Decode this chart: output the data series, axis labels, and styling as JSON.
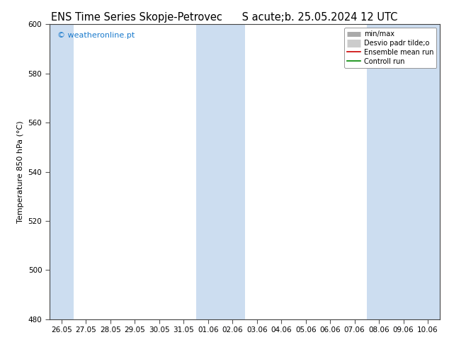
{
  "title1": "ENS Time Series Skopje-Petrovec",
  "title2": "S acute;b. 25.05.2024 12 UTC",
  "ylabel": "Temperature 850 hPa (°C)",
  "ylim": [
    480,
    600
  ],
  "yticks": [
    480,
    500,
    520,
    540,
    560,
    580,
    600
  ],
  "xlabels": [
    "26.05",
    "27.05",
    "28.05",
    "29.05",
    "30.05",
    "31.05",
    "01.06",
    "02.06",
    "03.06",
    "04.06",
    "05.06",
    "06.06",
    "07.06",
    "08.06",
    "09.06",
    "10.06"
  ],
  "n_ticks": 16,
  "band_color": "#ccddf0",
  "shaded_indices": [
    0,
    6,
    7,
    13,
    14,
    15
  ],
  "watermark": "© weatheronline.pt",
  "watermark_color": "#1a7acc",
  "legend_labels": [
    "min/max",
    "Desvio padr tilde;o",
    "Ensemble mean run",
    "Controll run"
  ],
  "legend_colors_bar": [
    "#b8cfe0",
    "#d0dfe8"
  ],
  "legend_line_colors": [
    "#cc0000",
    "#008800"
  ],
  "bg_color": "#ffffff",
  "title_fontsize": 10.5,
  "tick_fontsize": 7.5,
  "ylabel_fontsize": 8,
  "watermark_fontsize": 8,
  "figsize": [
    6.34,
    4.9
  ],
  "dpi": 100
}
